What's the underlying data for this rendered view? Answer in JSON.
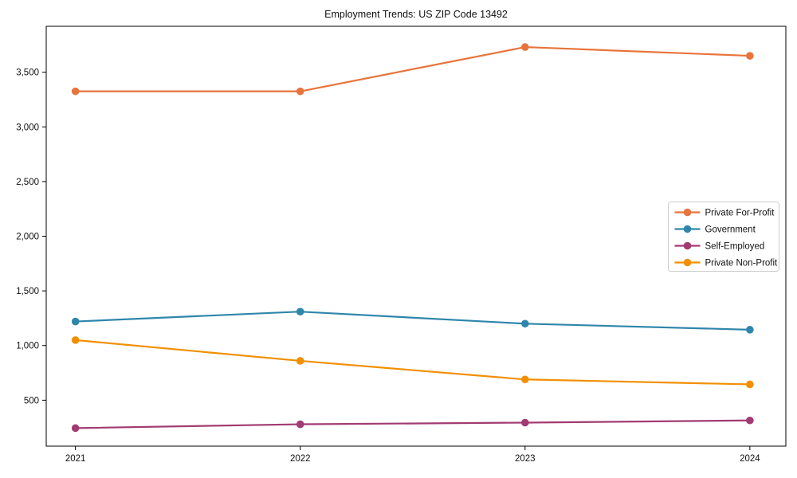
{
  "figure": {
    "background": "#ffffff",
    "text_color": "#111111",
    "spine_color": "#000000"
  },
  "chart_data": {
    "type": "line",
    "title": "Employment Trends: US ZIP Code 13492",
    "xlabel": "",
    "ylabel": "",
    "grid": false,
    "marker": "circle",
    "x": [
      2021,
      2022,
      2023,
      2024
    ],
    "x_tick_labels": [
      "2021",
      "2022",
      "2023",
      "2024"
    ],
    "xlim": [
      2020.87,
      2024.16
    ],
    "y_ticks": [
      500,
      1000,
      1500,
      2000,
      2500,
      3000,
      3500
    ],
    "y_tick_labels": [
      "500",
      "1,000",
      "1,500",
      "2,000",
      "2,500",
      "3,000",
      "3,500"
    ],
    "ylim": [
      80,
      3920
    ],
    "series": [
      {
        "name": "Private For-Profit",
        "color": "#E8743B",
        "values": [
          3325,
          3325,
          3730,
          3650
        ]
      },
      {
        "name": "Government",
        "color": "#2E86AB",
        "values": [
          1220,
          1310,
          1200,
          1145
        ]
      },
      {
        "name": "Self-Employed",
        "color": "#A23B72",
        "values": [
          245,
          280,
          295,
          315
        ]
      },
      {
        "name": "Private Non-Profit",
        "color": "#F18F01",
        "values": [
          1050,
          860,
          690,
          645
        ]
      }
    ],
    "legend": {
      "position": "center-right",
      "border_color": "#cccccc",
      "background": "#ffffff",
      "labels": [
        "Private For-Profit",
        "Government",
        "Self-Employed",
        "Private Non-Profit"
      ]
    }
  }
}
